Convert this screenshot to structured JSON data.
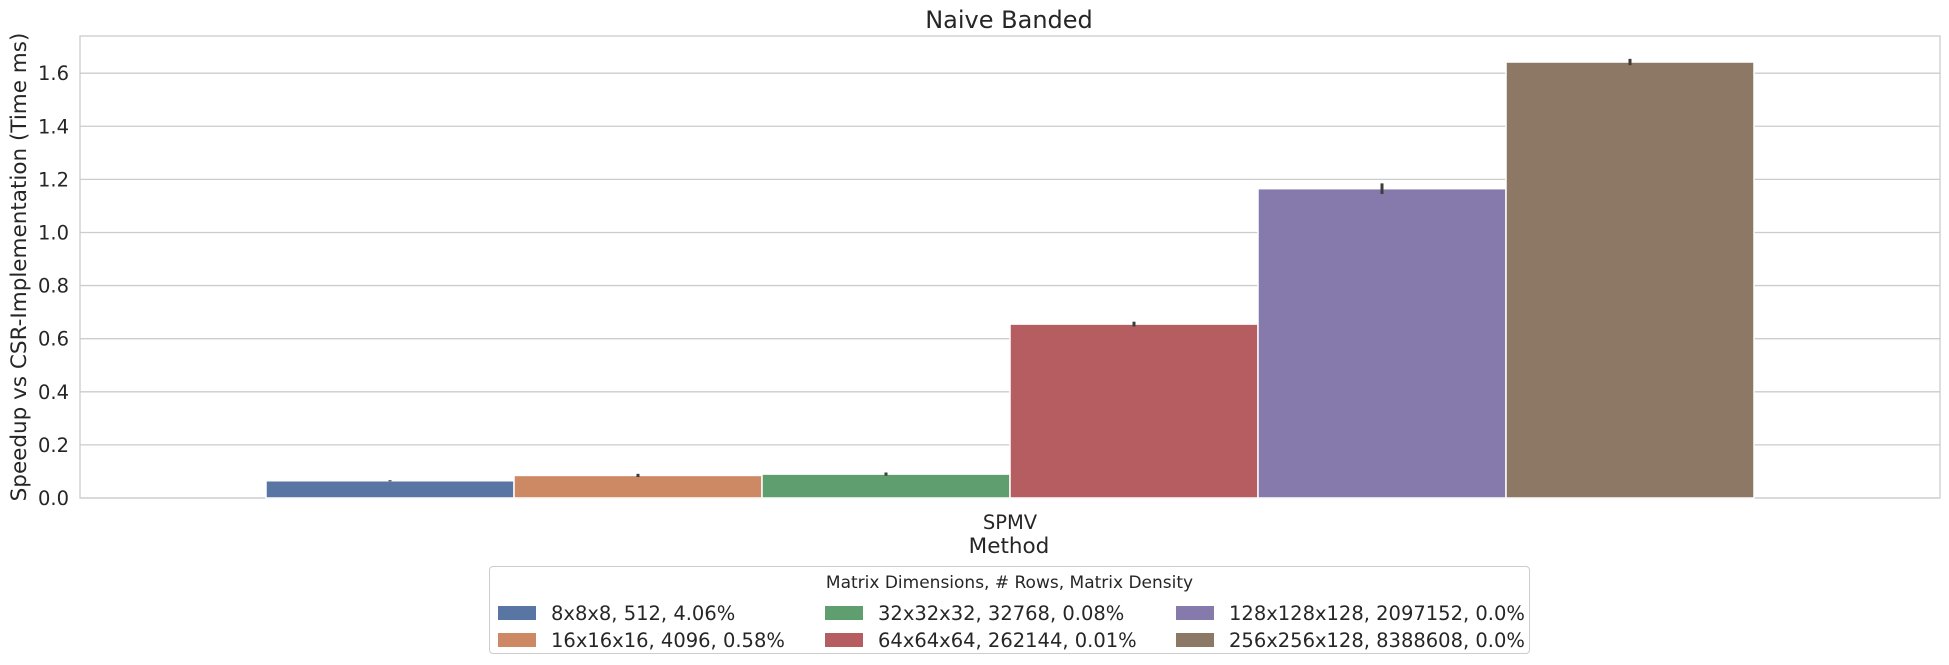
{
  "chart_data": {
    "type": "bar",
    "title": "Naive Banded",
    "xlabel": "Method",
    "ylabel": "Speedup vs CSR-Implementation (Time ms)",
    "categories": [
      "SPMV"
    ],
    "ylim": [
      0,
      1.74
    ],
    "yticks": [
      "0.0",
      "0.2",
      "0.4",
      "0.6",
      "0.8",
      "1.0",
      "1.2",
      "1.4",
      "1.6"
    ],
    "grid": true,
    "legend_placement": "bottom-center",
    "legend_title": "Matrix Dimensions, # Rows, Matrix Density",
    "series": [
      {
        "name": "8x8x8, 512, 4.06%",
        "values": [
          0.065
        ],
        "error": [
          0.002
        ],
        "color": "#5875a4"
      },
      {
        "name": "16x16x16, 4096, 0.58%",
        "values": [
          0.085
        ],
        "error": [
          0.006
        ],
        "color": "#cc8963"
      },
      {
        "name": "32x32x32, 32768, 0.08%",
        "values": [
          0.09
        ],
        "error": [
          0.006
        ],
        "color": "#5f9e6e"
      },
      {
        "name": "64x64x64, 262144, 0.01%",
        "values": [
          0.655
        ],
        "error": [
          0.009
        ],
        "color": "#b55d60"
      },
      {
        "name": "128x128x128, 2097152, 0.0%",
        "values": [
          1.165
        ],
        "error": [
          0.02
        ],
        "color": "#857aab"
      },
      {
        "name": "256x256x128, 8388608, 0.0%",
        "values": [
          1.642
        ],
        "error": [
          0.012
        ],
        "color": "#8d7866"
      }
    ]
  }
}
